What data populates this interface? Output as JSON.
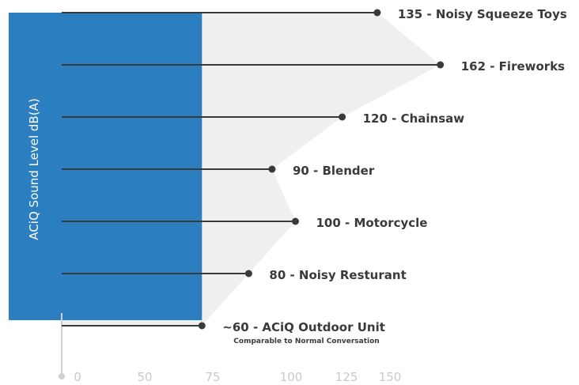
{
  "chart_data": {
    "type": "bar",
    "orientation": "horizontal",
    "ylabel": "ACiQ Sound Level dB(A)",
    "x_ticks": [
      "0",
      "50",
      "75",
      "100",
      "125",
      "150"
    ],
    "items": [
      {
        "value": 135,
        "name": "Noisy Squeeze Toys",
        "label": "135 - Noisy Squeeze Toys",
        "note": ""
      },
      {
        "value": 162,
        "name": "Fireworks",
        "label": "162 - Fireworks",
        "note": ""
      },
      {
        "value": 120,
        "name": "Chainsaw",
        "label": "120 - Chainsaw",
        "note": ""
      },
      {
        "value": 90,
        "name": "Blender",
        "label": "90 - Blender",
        "note": ""
      },
      {
        "value": 100,
        "name": "Motorcycle",
        "label": "100 - Motorcycle",
        "note": ""
      },
      {
        "value": 80,
        "name": "Noisy Resturant",
        "label": "80 - Noisy Resturant",
        "note": ""
      },
      {
        "value": 60,
        "name": "ACiQ Outdoor Unit",
        "label": "~60 - ACiQ Outdoor Unit",
        "note": "Comparable to Normal Conversation"
      }
    ],
    "highlight": {
      "name": "ACiQ Outdoor Unit",
      "value": 60
    },
    "colors": {
      "highlight": "#2b7fc1",
      "area": "#efefef",
      "line": "#3a3a3a",
      "axis": "#d0d0d0",
      "tick": "#c9c9c9"
    }
  }
}
